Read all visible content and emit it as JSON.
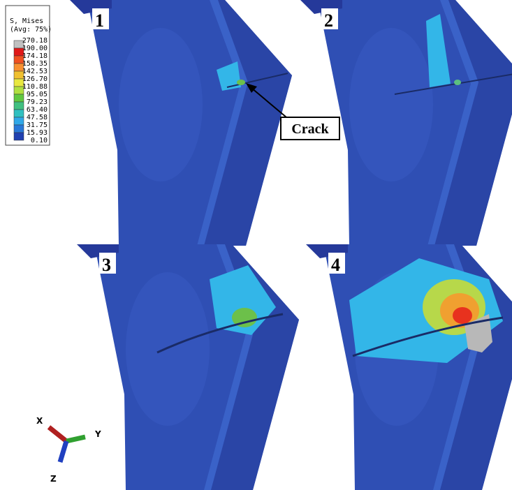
{
  "legend": {
    "title": "S, Mises",
    "subtitle": "(Avg: 75%)",
    "values": [
      "270.18",
      "190.00",
      "174.18",
      "158.35",
      "142.53",
      "126.70",
      "110.88",
      "95.05",
      "79.23",
      "63.40",
      "47.58",
      "31.75",
      "15.93",
      "0.10"
    ]
  },
  "panels": [
    "1",
    "2",
    "3",
    "4"
  ],
  "annotation": "Crack",
  "triad": [
    "X",
    "Y",
    "Z"
  ]
}
